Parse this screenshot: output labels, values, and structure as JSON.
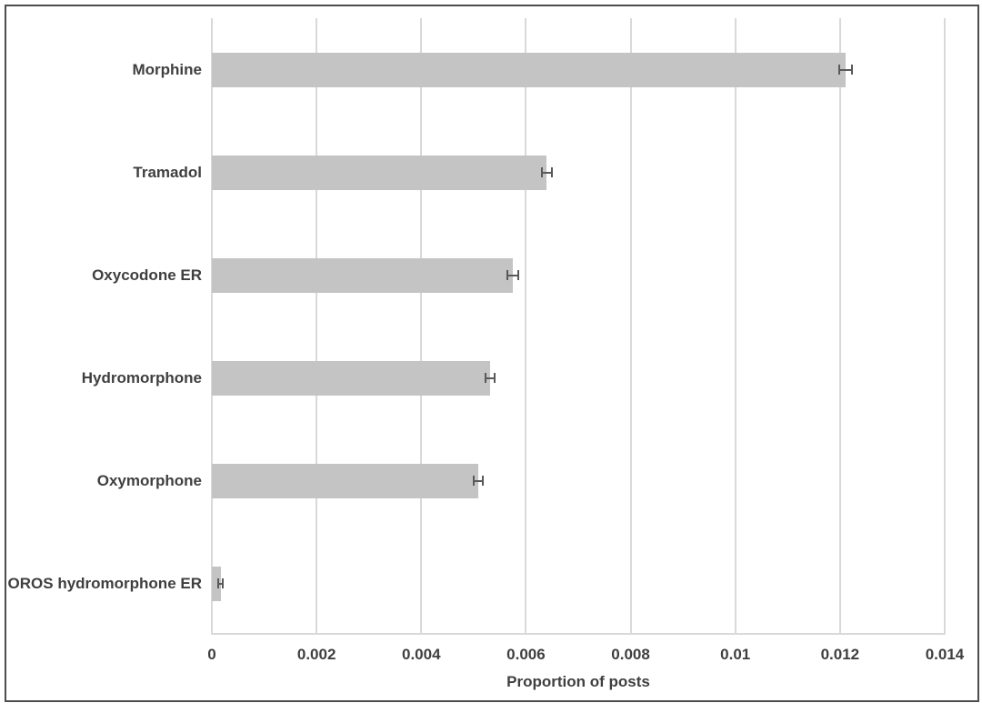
{
  "chart_data": {
    "type": "bar",
    "orientation": "horizontal",
    "title": "",
    "xlabel": "Proportion of posts",
    "ylabel": "",
    "categories": [
      "Morphine",
      "Tramadol",
      "Oxycodone ER",
      "Hydromorphone",
      "Oxymorphone",
      "OROS hydromorphone ER"
    ],
    "series": [
      {
        "name": "Proportion of posts",
        "values": [
          0.0121,
          0.0064,
          0.00575,
          0.00532,
          0.00509,
          0.00017
        ],
        "errors": [
          0.00012,
          0.0001,
          0.0001,
          9e-05,
          9e-05,
          4e-05
        ]
      }
    ],
    "xlim": [
      0,
      0.014
    ],
    "xticks": [
      0,
      0.002,
      0.004,
      0.006,
      0.008,
      0.01,
      0.012,
      0.014
    ],
    "xtick_labels": [
      "0",
      "0.002",
      "0.004",
      "0.006",
      "0.008",
      "0.01",
      "0.012",
      "0.014"
    ],
    "grid": "vertical-only",
    "legend": false,
    "error_bars": true
  },
  "colors": {
    "bar": "#c4c4c4",
    "gridline": "#d9d9d9",
    "error_bar": "#595959",
    "text": "#3f3f3f",
    "frame_border": "#4d4d4d",
    "background": "#ffffff"
  }
}
